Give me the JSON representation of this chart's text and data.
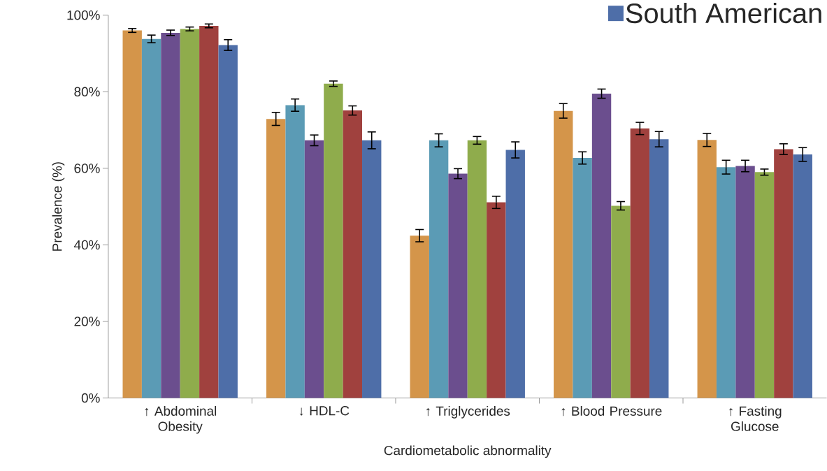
{
  "chart_data": {
    "type": "bar",
    "xlabel": "Cardiometabolic abnormality",
    "ylabel": "Prevalence (%)",
    "categories": [
      "↑ Abdominal Obesity",
      "↓ HDL-C",
      "↑ Triglycerides",
      "↑ Blood Pressure",
      "↑ Fasting Glucose"
    ],
    "series": [
      {
        "color": "#d4954a",
        "values": [
          96.0,
          72.9,
          42.4,
          75.0,
          67.4
        ],
        "errors": [
          0.5,
          1.7,
          1.6,
          1.9,
          1.7
        ]
      },
      {
        "color": "#5b9bb5",
        "values": [
          93.8,
          76.5,
          67.3,
          62.7,
          60.3
        ],
        "errors": [
          1.0,
          1.6,
          1.7,
          1.6,
          1.8
        ]
      },
      {
        "color": "#6b4e8e",
        "values": [
          95.4,
          67.3,
          58.6,
          79.5,
          60.6
        ],
        "errors": [
          0.7,
          1.4,
          1.3,
          1.2,
          1.5
        ]
      },
      {
        "color": "#8fac4c",
        "values": [
          96.4,
          82.1,
          67.3,
          50.2,
          59.0
        ],
        "errors": [
          0.5,
          0.7,
          1.0,
          1.1,
          0.8
        ]
      },
      {
        "color": "#a0413e",
        "values": [
          97.2,
          75.1,
          51.1,
          70.4,
          65.0
        ],
        "errors": [
          0.5,
          1.2,
          1.6,
          1.6,
          1.4
        ]
      },
      {
        "name": "South American",
        "color": "#4e6ea8",
        "values": [
          92.2,
          67.3,
          64.8,
          67.6,
          63.6
        ],
        "errors": [
          1.4,
          2.2,
          2.1,
          2.0,
          1.8
        ]
      }
    ],
    "ylim": [
      0,
      100
    ],
    "yticks": [
      {
        "value": 0,
        "label": "0%"
      },
      {
        "value": 20,
        "label": "20%"
      },
      {
        "value": 40,
        "label": "40%"
      },
      {
        "value": 60,
        "label": "60%"
      },
      {
        "value": 80,
        "label": "80%"
      },
      {
        "value": 100,
        "label": "100%"
      }
    ],
    "legend": "top right"
  }
}
